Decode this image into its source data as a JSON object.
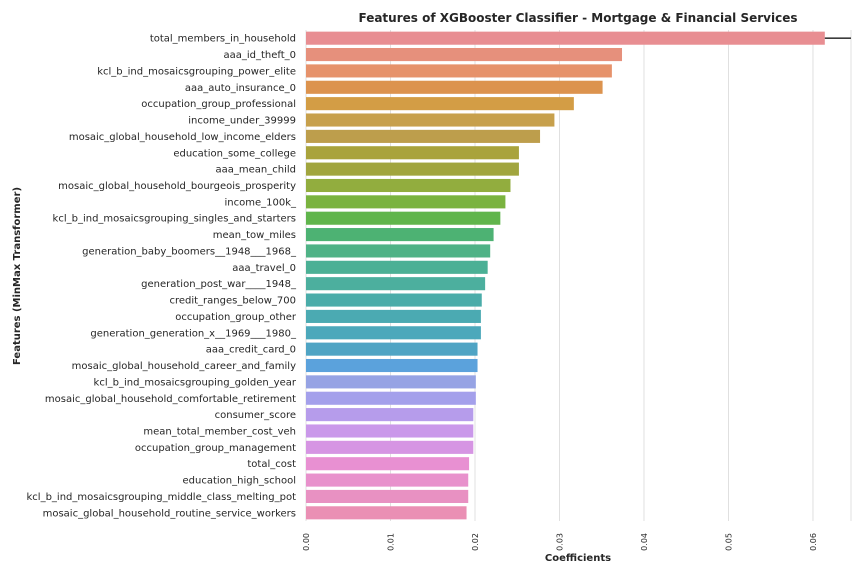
{
  "chart_data": {
    "type": "bar",
    "orientation": "horizontal",
    "title": "Features of XGBooster Classifier - Mortgage & Financial Services",
    "xlabel": "Coefficients",
    "ylabel": "Features (MinMax Transformer)",
    "xlim": [
      0,
      0.0645
    ],
    "xticks": [
      0.0,
      0.01,
      0.02,
      0.03,
      0.04,
      0.05,
      0.06
    ],
    "xtick_labels": [
      "0.00",
      "0.01",
      "0.02",
      "0.03",
      "0.04",
      "0.05",
      "0.06"
    ],
    "grid": true,
    "categories": [
      "total_members_in_household",
      "aaa_id_theft_0",
      "kcl_b_ind_mosaicsgrouping_power_elite",
      "aaa_auto_insurance_0",
      "occupation_group_professional",
      "income_under_39999",
      "mosaic_global_household_low_income_elders",
      "education_some_college",
      "aaa_mean_child",
      "mosaic_global_household_bourgeois_prosperity",
      "income_100k_",
      "kcl_b_ind_mosaicsgrouping_singles_and_starters",
      "mean_tow_miles",
      "generation_baby_boomers__1948___1968_",
      "aaa_travel_0",
      "generation_post_war____1948_",
      "credit_ranges_below_700",
      "occupation_group_other",
      "generation_generation_x__1969___1980_",
      "aaa_credit_card_0",
      "mosaic_global_household_career_and_family",
      "kcl_b_ind_mosaicsgrouping_golden_year",
      "mosaic_global_household_comfortable_retirement",
      "consumer_score",
      "mean_total_member_cost_veh",
      "occupation_group_management",
      "total_cost",
      "education_high_school",
      "kcl_b_ind_mosaicsgrouping_middle_class_melting_pot",
      "mosaic_global_household_routine_service_workers"
    ],
    "values": [
      0.0614,
      0.0374,
      0.0362,
      0.0351,
      0.0317,
      0.0294,
      0.0277,
      0.0252,
      0.0252,
      0.0242,
      0.0236,
      0.023,
      0.0222,
      0.0218,
      0.0215,
      0.0212,
      0.0208,
      0.0207,
      0.0207,
      0.0203,
      0.0203,
      0.0201,
      0.0201,
      0.0198,
      0.0198,
      0.0198,
      0.0193,
      0.0192,
      0.0192,
      0.019
    ],
    "error_bars": [
      [
        0.0614,
        0.0645
      ]
    ],
    "colors": [
      "#e88e92",
      "#e6907c",
      "#e6926b",
      "#dc934e",
      "#d39d45",
      "#c7a04c",
      "#bd9e4c",
      "#a9a33c",
      "#a1a53e",
      "#92ad3e",
      "#7ab33f",
      "#60b54c",
      "#4db273",
      "#4fb286",
      "#4bb095",
      "#4caf9e",
      "#4aaca9",
      "#4baab2",
      "#4ca8bb",
      "#4fa4c4",
      "#5ba2dc",
      "#96a3e4",
      "#a4a0eb",
      "#b69ceb",
      "#ca98ea",
      "#d695e3",
      "#e890d2",
      "#e891cc",
      "#e891c2",
      "#ea8fb4"
    ]
  }
}
